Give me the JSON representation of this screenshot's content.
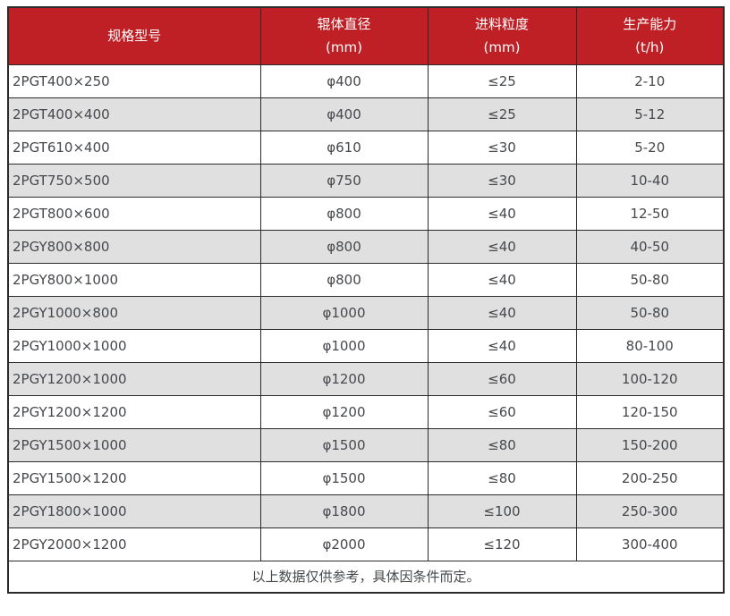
{
  "table": {
    "headers": [
      {
        "title": "规格型号",
        "unit": ""
      },
      {
        "title": "辊体直径",
        "unit": "(mm)"
      },
      {
        "title": "进料粒度",
        "unit": "(mm)"
      },
      {
        "title": "生产能力",
        "unit": "(t/h)"
      }
    ],
    "rows": [
      [
        "2PGT400×250",
        "φ400",
        "≤25",
        "2-10"
      ],
      [
        "2PGT400×400",
        "φ400",
        "≤25",
        "5-12"
      ],
      [
        "2PGT610×400",
        "φ610",
        "≤30",
        "5-20"
      ],
      [
        "2PGT750×500",
        "φ750",
        "≤30",
        "10-40"
      ],
      [
        "2PGT800×600",
        "φ800",
        "≤40",
        "12-50"
      ],
      [
        "2PGY800×800",
        "φ800",
        "≤40",
        "40-50"
      ],
      [
        "2PGY800×1000",
        "φ800",
        "≤40",
        "50-80"
      ],
      [
        "2PGY1000×800",
        "φ1000",
        "≤40",
        "50-80"
      ],
      [
        "2PGY1000×1000",
        "φ1000",
        "≤40",
        "80-100"
      ],
      [
        "2PGY1200×1000",
        "φ1200",
        "≤60",
        "100-120"
      ],
      [
        "2PGY1200×1200",
        "φ1200",
        "≤60",
        "120-150"
      ],
      [
        "2PGY1500×1000",
        "φ1500",
        "≤80",
        "150-200"
      ],
      [
        "2PGY1500×1200",
        "φ1500",
        "≤80",
        "200-250"
      ],
      [
        "2PGY1800×1000",
        "φ1800",
        "≤100",
        "250-300"
      ],
      [
        "2PGY2000×1200",
        "φ2000",
        "≤120",
        "300-400"
      ]
    ],
    "footer_note": "以上数据仅供参考，具体因条件而定。"
  },
  "colors": {
    "header_bg": "#be2026",
    "header_text": "#ffffff",
    "row_alt_bg": "#e0e0e0",
    "body_text": "#46484c",
    "grid_border": "#2b2b2b"
  }
}
